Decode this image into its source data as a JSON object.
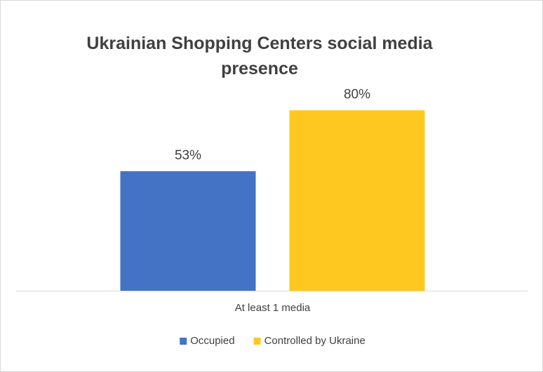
{
  "chart_data": {
    "type": "bar",
    "title": "Ukrainian Shopping Centers social media presence",
    "categories": [
      "At least 1 media"
    ],
    "series": [
      {
        "name": "Occupied",
        "color": "#4472c4",
        "values": [
          53
        ],
        "value_labels": [
          "53%"
        ]
      },
      {
        "name": "Controlled by Ukraine",
        "color": "#ffc820",
        "values": [
          80
        ],
        "value_labels": [
          "80%"
        ]
      }
    ],
    "ylim": [
      0,
      100
    ],
    "legend": "bottom"
  }
}
